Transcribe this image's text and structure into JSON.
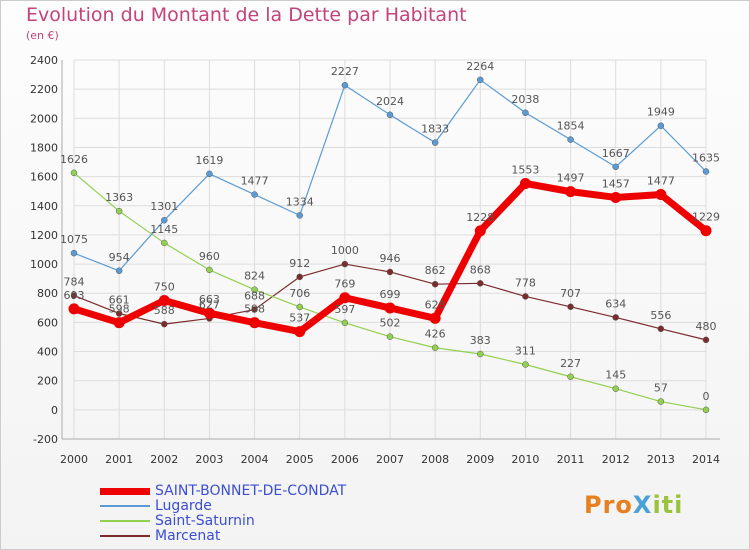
{
  "title": "Evolution du Montant de la Dette par Habitant",
  "unit": "(en €)",
  "logo": {
    "text": "ProXiti"
  },
  "chart_data": {
    "type": "line",
    "title": "Evolution du Montant de la Dette par Habitant",
    "subtitle": "(en €)",
    "x": [
      2000,
      2001,
      2002,
      2003,
      2004,
      2005,
      2006,
      2007,
      2008,
      2009,
      2010,
      2011,
      2012,
      2013,
      2014
    ],
    "ylim": [
      -200,
      2400
    ],
    "yticks": [
      -200,
      0,
      200,
      400,
      600,
      800,
      1000,
      1200,
      1400,
      1600,
      1800,
      2000,
      2200,
      2400
    ],
    "grid": true,
    "legend_position": "bottom",
    "series": [
      {
        "name": "SAINT-BONNET-DE-CONDAT",
        "color": "#ee0000",
        "width": 7,
        "values": [
          693,
          598,
          750,
          663,
          598,
          537,
          769,
          699,
          628,
          1228,
          1553,
          1497,
          1457,
          1477,
          1229
        ]
      },
      {
        "name": "Lugarde",
        "color": "#5b9bd5",
        "width": 1.2,
        "values": [
          1075,
          954,
          1301,
          1619,
          1477,
          1334,
          2227,
          2024,
          1833,
          2264,
          2038,
          1854,
          1667,
          1949,
          1635
        ]
      },
      {
        "name": "Saint-Saturnin",
        "color": "#92d050",
        "width": 1.2,
        "values": [
          1626,
          1363,
          1145,
          960,
          824,
          706,
          597,
          502,
          426,
          383,
          311,
          227,
          145,
          57,
          0
        ]
      },
      {
        "name": "Marcenat",
        "color": "#7b2c2c",
        "width": 1.2,
        "values": [
          784,
          661,
          588,
          627,
          688,
          912,
          1000,
          946,
          862,
          868,
          778,
          707,
          634,
          556,
          480
        ]
      }
    ]
  }
}
